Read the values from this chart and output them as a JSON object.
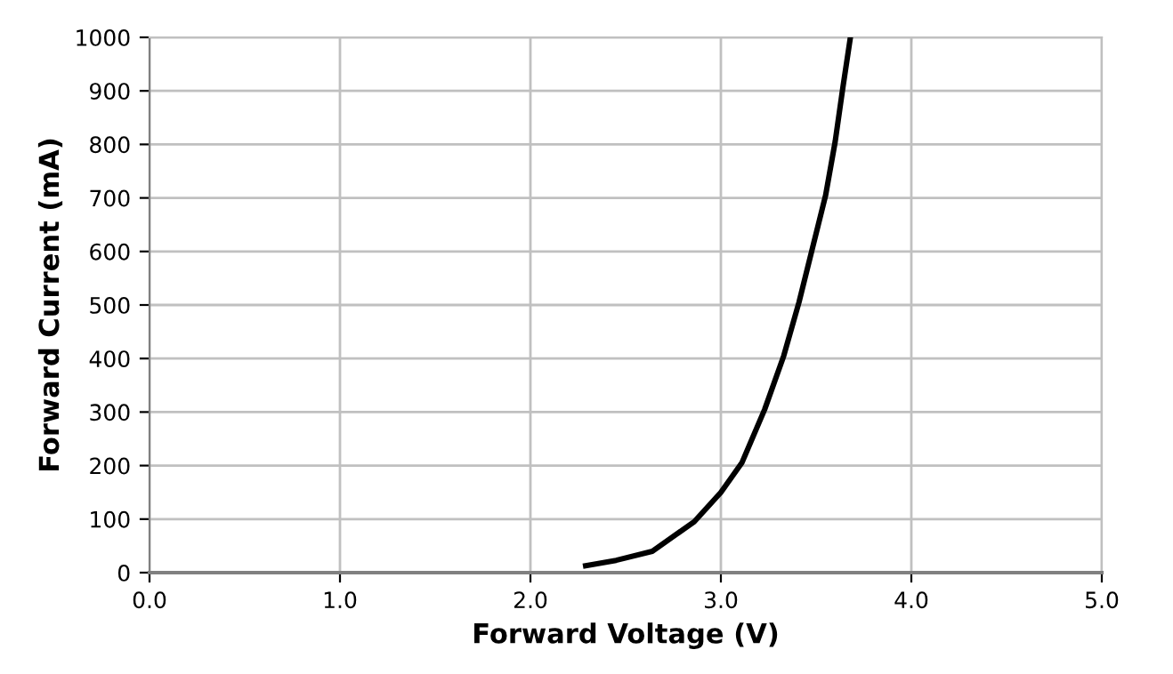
{
  "chart_data": {
    "type": "line",
    "xlabel": "Forward Voltage (V)",
    "ylabel": "Forward Current (mA)",
    "x": [
      2.29,
      2.45,
      2.64,
      2.86,
      3.0,
      3.11,
      3.23,
      3.33,
      3.41,
      3.48,
      3.55,
      3.6,
      3.64,
      3.68
    ],
    "series": [
      {
        "color": "#000000",
        "values": [
          13,
          23,
          40,
          95,
          150,
          205,
          305,
          405,
          505,
          605,
          705,
          805,
          905,
          1000
        ]
      }
    ],
    "xlim": [
      0,
      5
    ],
    "xticks": [
      {
        "value": 0,
        "label": "0.0"
      },
      {
        "value": 1,
        "label": "1.0"
      },
      {
        "value": 2,
        "label": "2.0"
      },
      {
        "value": 3,
        "label": "3.0"
      },
      {
        "value": 4,
        "label": "4.0"
      },
      {
        "value": 5,
        "label": "5.0"
      }
    ],
    "ylim": [
      0,
      1000
    ],
    "yticks": [
      0,
      100,
      200,
      300,
      400,
      500,
      600,
      700,
      800,
      900,
      1000
    ],
    "grid": true,
    "marker": "none",
    "line_style": "solid"
  }
}
